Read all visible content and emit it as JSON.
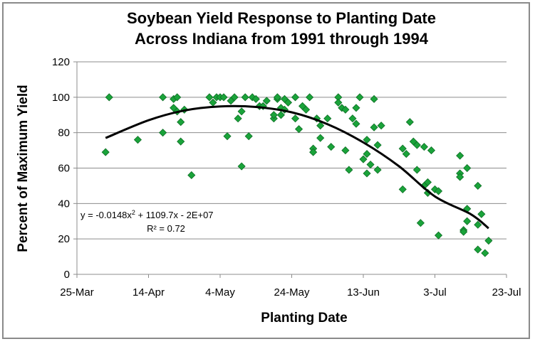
{
  "chart_data": {
    "type": "scatter",
    "title_lines": [
      "Soybean Yield Response to Planting Date",
      "Across Indiana from 1991 through 1994"
    ],
    "xlabel": "Planting Date",
    "ylabel": "Percent of Maximum Yield",
    "x_ticks": [
      "25-Mar",
      "14-Apr",
      "4-May",
      "24-May",
      "13-Jun",
      "3-Jul",
      "23-Jul"
    ],
    "y_ticks": [
      "0",
      "20",
      "40",
      "60",
      "80",
      "100",
      "120"
    ],
    "ylim": [
      0,
      120
    ],
    "grid": "horizontal",
    "marker_color": "#1aa33a",
    "trend_color": "#000000",
    "equation_text": "y = -0.0148x",
    "equation_sup": "2",
    "equation_rest": " + 1109.7x - 2E+07",
    "r2_text": "R² = 0.72",
    "series": [
      {
        "points": [
          [
            "2-Apr",
            69
          ],
          [
            "3-Apr",
            100
          ],
          [
            "11-Apr",
            76
          ],
          [
            "18-Apr",
            80
          ],
          [
            "18-Apr",
            100
          ],
          [
            "21-Apr",
            99
          ],
          [
            "21-Apr",
            94
          ],
          [
            "22-Apr",
            100
          ],
          [
            "22-Apr",
            92
          ],
          [
            "23-Apr",
            86
          ],
          [
            "23-Apr",
            75
          ],
          [
            "24-Apr",
            93
          ],
          [
            "26-Apr",
            56
          ],
          [
            "1-May",
            100
          ],
          [
            "2-May",
            97
          ],
          [
            "3-May",
            100
          ],
          [
            "4-May",
            100
          ],
          [
            "5-May",
            100
          ],
          [
            "6-May",
            78
          ],
          [
            "7-May",
            98
          ],
          [
            "8-May",
            100
          ],
          [
            "9-May",
            88
          ],
          [
            "10-May",
            61
          ],
          [
            "10-May",
            92
          ],
          [
            "11-May",
            100
          ],
          [
            "12-May",
            78
          ],
          [
            "13-May",
            100
          ],
          [
            "14-May",
            99
          ],
          [
            "15-May",
            95
          ],
          [
            "16-May",
            95
          ],
          [
            "17-May",
            98
          ],
          [
            "19-May",
            88
          ],
          [
            "19-May",
            90
          ],
          [
            "20-May",
            99
          ],
          [
            "20-May",
            100
          ],
          [
            "21-May",
            94
          ],
          [
            "21-May",
            90
          ],
          [
            "22-May",
            99
          ],
          [
            "22-May",
            93
          ],
          [
            "23-May",
            97
          ],
          [
            "25-May",
            88
          ],
          [
            "25-May",
            100
          ],
          [
            "26-May",
            82
          ],
          [
            "27-May",
            95
          ],
          [
            "28-May",
            93
          ],
          [
            "29-May",
            100
          ],
          [
            "30-May",
            71
          ],
          [
            "30-May",
            69
          ],
          [
            "31-May",
            88
          ],
          [
            "1-Jun",
            84
          ],
          [
            "1-Jun",
            77
          ],
          [
            "3-Jun",
            88
          ],
          [
            "4-Jun",
            72
          ],
          [
            "6-Jun",
            100
          ],
          [
            "6-Jun",
            97
          ],
          [
            "7-Jun",
            94
          ],
          [
            "8-Jun",
            93
          ],
          [
            "8-Jun",
            70
          ],
          [
            "9-Jun",
            59
          ],
          [
            "10-Jun",
            88
          ],
          [
            "11-Jun",
            85
          ],
          [
            "11-Jun",
            94
          ],
          [
            "12-Jun",
            100
          ],
          [
            "13-Jun",
            65
          ],
          [
            "14-Jun",
            68
          ],
          [
            "14-Jun",
            57
          ],
          [
            "14-Jun",
            76
          ],
          [
            "15-Jun",
            62
          ],
          [
            "16-Jun",
            99
          ],
          [
            "16-Jun",
            83
          ],
          [
            "17-Jun",
            73
          ],
          [
            "17-Jun",
            59
          ],
          [
            "18-Jun",
            84
          ],
          [
            "24-Jun",
            48
          ],
          [
            "24-Jun",
            71
          ],
          [
            "25-Jun",
            68
          ],
          [
            "26-Jun",
            86
          ],
          [
            "27-Jun",
            75
          ],
          [
            "28-Jun",
            73
          ],
          [
            "28-Jun",
            59
          ],
          [
            "29-Jun",
            29
          ],
          [
            "30-Jun",
            72
          ],
          [
            "30-Jun",
            50
          ],
          [
            "1-Jul",
            46
          ],
          [
            "1-Jul",
            52
          ],
          [
            "2-Jul",
            70
          ],
          [
            "3-Jul",
            48
          ],
          [
            "4-Jul",
            22
          ],
          [
            "4-Jul",
            47
          ],
          [
            "10-Jul",
            67
          ],
          [
            "10-Jul",
            57
          ],
          [
            "10-Jul",
            55
          ],
          [
            "11-Jul",
            25
          ],
          [
            "11-Jul",
            24
          ],
          [
            "12-Jul",
            37
          ],
          [
            "12-Jul",
            60
          ],
          [
            "12-Jul",
            30
          ],
          [
            "15-Jul",
            50
          ],
          [
            "15-Jul",
            28
          ],
          [
            "15-Jul",
            14
          ],
          [
            "16-Jul",
            34
          ],
          [
            "17-Jul",
            12
          ],
          [
            "18-Jul",
            19
          ]
        ]
      }
    ],
    "trendline": [
      [
        "2-Apr",
        77
      ],
      [
        "14-Apr",
        87
      ],
      [
        "24-Apr",
        92.5
      ],
      [
        "4-May",
        94.8
      ],
      [
        "14-May",
        94.5
      ],
      [
        "24-May",
        91.5
      ],
      [
        "3-Jun",
        84.8
      ],
      [
        "13-Jun",
        74.5
      ],
      [
        "23-Jun",
        61
      ],
      [
        "3-Jul",
        44
      ],
      [
        "13-Jul",
        34
      ],
      [
        "18-Jul",
        26
      ]
    ]
  }
}
